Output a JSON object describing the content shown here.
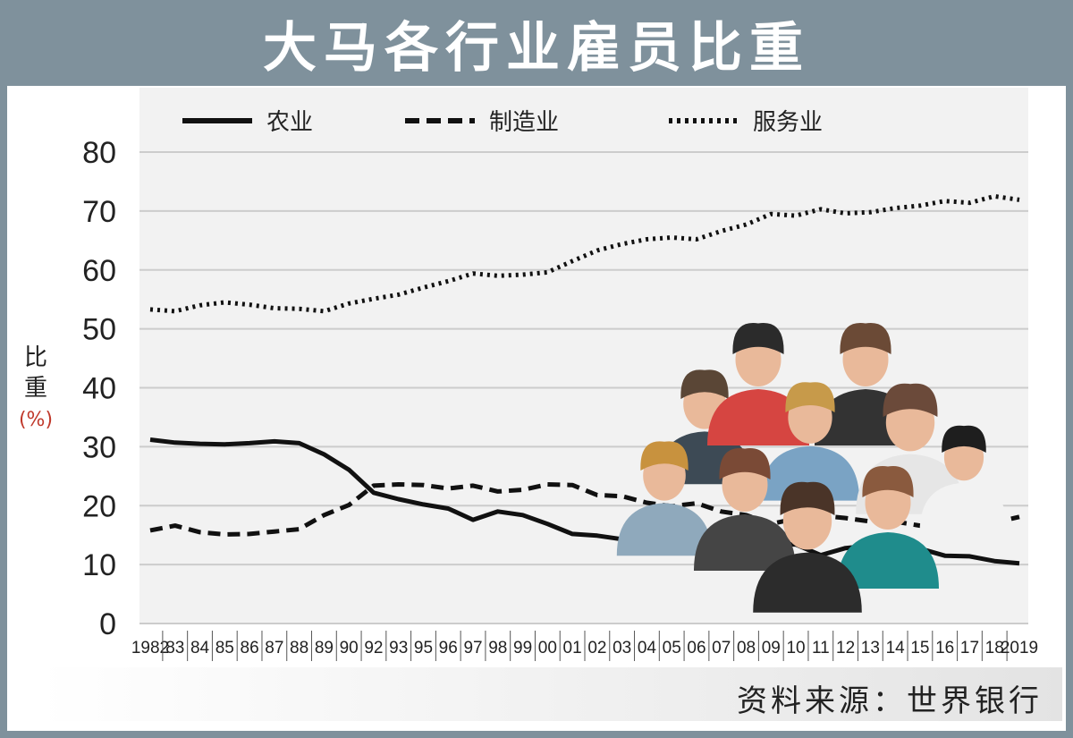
{
  "title": "大马各行业雇员比重",
  "source": "资料来源：世界银行",
  "chart_data": {
    "type": "line",
    "title": "大马各行业雇员比重",
    "ylabel_chars": [
      "比",
      "重"
    ],
    "ylabel_unit": "(%)",
    "ylim": [
      0,
      80
    ],
    "yticks": [
      0,
      10,
      20,
      30,
      40,
      50,
      60,
      70,
      80
    ],
    "grid": true,
    "legend_position": "top",
    "categories": [
      "1982",
      "83",
      "84",
      "85",
      "86",
      "87",
      "88",
      "89",
      "90",
      "92",
      "93",
      "95",
      "96",
      "97",
      "98",
      "99",
      "00",
      "01",
      "02",
      "03",
      "04",
      "05",
      "06",
      "07",
      "08",
      "09",
      "10",
      "11",
      "12",
      "13",
      "14",
      "15",
      "16",
      "17",
      "18",
      "2019"
    ],
    "series": [
      {
        "name": "农业",
        "style": "solid",
        "values": [
          31.2,
          30.7,
          30.5,
          30.4,
          30.6,
          30.9,
          30.6,
          28.7,
          26.1,
          22.2,
          21.1,
          20.2,
          19.5,
          17.6,
          19.0,
          18.4,
          16.9,
          15.2,
          14.9,
          14.3,
          14.6,
          14.8,
          14.9,
          14.9,
          14.3,
          13.6,
          13.4,
          11.6,
          12.8,
          13.2,
          12.5,
          12.7,
          11.5,
          11.4,
          10.6,
          10.2
        ]
      },
      {
        "name": "制造业",
        "style": "dashed",
        "values": [
          15.8,
          16.6,
          15.5,
          15.1,
          15.2,
          15.6,
          16.0,
          18.4,
          20.1,
          23.4,
          23.6,
          23.5,
          22.9,
          23.4,
          22.4,
          22.7,
          23.6,
          23.5,
          21.8,
          21.6,
          20.5,
          19.9,
          20.4,
          19.0,
          18.4,
          16.9,
          17.8,
          18.3,
          17.9,
          17.3,
          17.3,
          16.6,
          17.0,
          17.4,
          17.1,
          18.1
        ]
      },
      {
        "name": "服务业",
        "style": "dotted",
        "values": [
          53.3,
          53.0,
          54.0,
          54.5,
          54.1,
          53.5,
          53.4,
          53.0,
          54.3,
          55.1,
          55.8,
          57.0,
          58.1,
          59.4,
          59.0,
          59.2,
          59.6,
          61.5,
          63.3,
          64.4,
          65.2,
          65.5,
          65.2,
          66.6,
          67.7,
          69.5,
          69.2,
          70.3,
          69.6,
          69.8,
          70.5,
          70.9,
          71.7,
          71.4,
          72.5,
          71.9
        ]
      }
    ],
    "colors": {
      "line": "#111111",
      "grid": "#cccccc",
      "title_bar": "#7f919c"
    }
  }
}
